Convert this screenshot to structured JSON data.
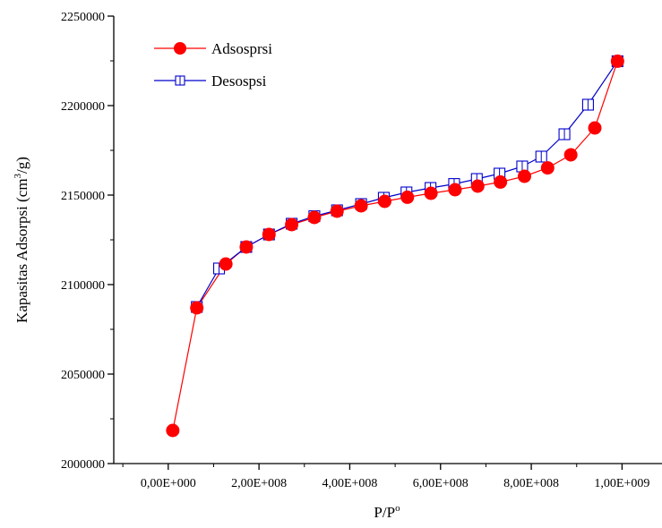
{
  "chart_data": {
    "type": "line",
    "xlabel": {
      "base": "P/P",
      "sup": "o"
    },
    "ylabel": {
      "pre": "Kapasitas Adsorpsi (cm",
      "sup": "3",
      "post": "/g)"
    },
    "xlim": [
      -120000000,
      1090000000
    ],
    "ylim": [
      2000000,
      2250000
    ],
    "x_ticks": [
      {
        "value": 0,
        "label": "0,00E+000"
      },
      {
        "value": 200000000,
        "label": "2,00E+008"
      },
      {
        "value": 400000000,
        "label": "4,00E+008"
      },
      {
        "value": 600000000,
        "label": "6,00E+008"
      },
      {
        "value": 800000000,
        "label": "8,00E+008"
      },
      {
        "value": 1000000000,
        "label": "1,00E+009"
      }
    ],
    "y_ticks": [
      {
        "value": 2000000,
        "label": "2000000"
      },
      {
        "value": 2050000,
        "label": "2050000"
      },
      {
        "value": 2100000,
        "label": "2100000"
      },
      {
        "value": 2150000,
        "label": "2150000"
      },
      {
        "value": 2200000,
        "label": "2200000"
      },
      {
        "value": 2250000,
        "label": "2250000"
      }
    ],
    "legend_position": "top-left",
    "series": [
      {
        "name": "Adsosprsi",
        "color": "#ff0000",
        "marker": "filled-circle",
        "points": [
          [
            10000000,
            2018500
          ],
          [
            63000000,
            2087000
          ],
          [
            127000000,
            2111500
          ],
          [
            172000000,
            2121000
          ],
          [
            222000000,
            2128000
          ],
          [
            272000000,
            2133500
          ],
          [
            322000000,
            2137500
          ],
          [
            372000000,
            2141000
          ],
          [
            425000000,
            2144000
          ],
          [
            477000000,
            2146500
          ],
          [
            527000000,
            2148800
          ],
          [
            579000000,
            2151000
          ],
          [
            632000000,
            2153000
          ],
          [
            682000000,
            2155000
          ],
          [
            732000000,
            2157300
          ],
          [
            785000000,
            2160500
          ],
          [
            836000000,
            2165200
          ],
          [
            887000000,
            2172500
          ],
          [
            940000000,
            2187500
          ],
          [
            990000000,
            2224800
          ]
        ]
      },
      {
        "name": "Desospsi",
        "color": "#0000cc",
        "marker": "open-square",
        "points": [
          [
            990000000,
            2224800
          ],
          [
            925000000,
            2200500
          ],
          [
            873000000,
            2184000
          ],
          [
            822000000,
            2171500
          ],
          [
            780000000,
            2166000
          ],
          [
            730000000,
            2162000
          ],
          [
            680000000,
            2159000
          ],
          [
            630000000,
            2156200
          ],
          [
            578000000,
            2154000
          ],
          [
            525000000,
            2151500
          ],
          [
            475000000,
            2148500
          ],
          [
            425000000,
            2145000
          ],
          [
            372000000,
            2141500
          ],
          [
            322000000,
            2138200
          ],
          [
            272000000,
            2134000
          ],
          [
            222000000,
            2128000
          ],
          [
            172000000,
            2121000
          ],
          [
            112000000,
            2109000
          ],
          [
            63000000,
            2087500
          ]
        ]
      }
    ]
  }
}
